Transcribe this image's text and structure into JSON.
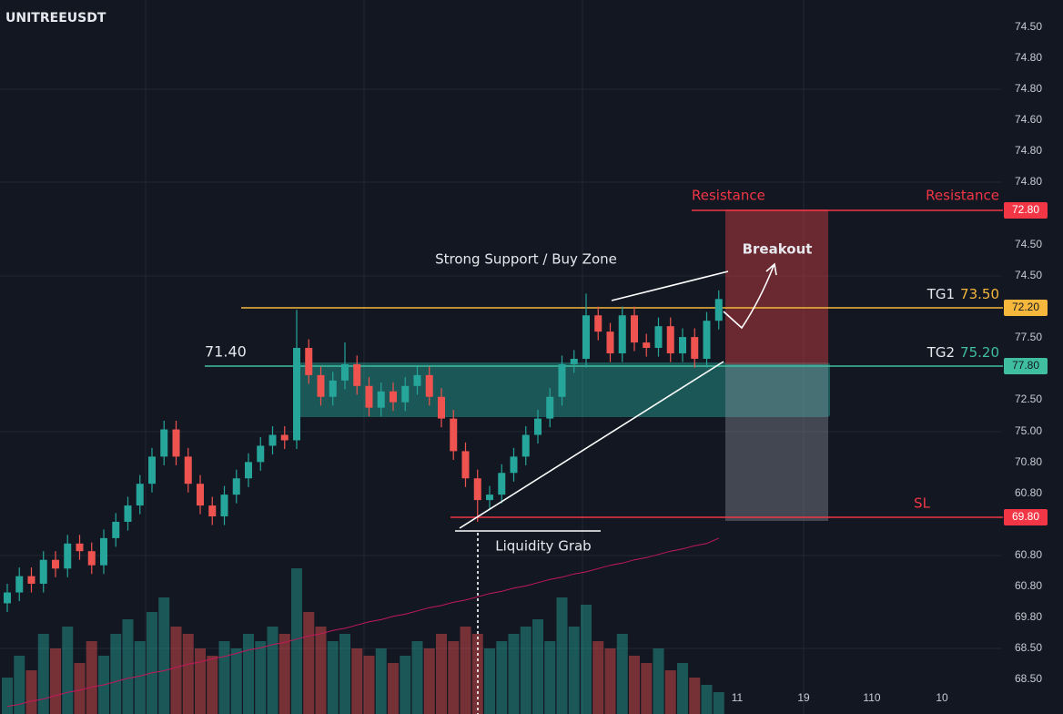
{
  "chart_data": {
    "type": "candlestick",
    "title": "UNITREEUSDT",
    "ylim": [
      68.5,
      74.5
    ],
    "up_color": "#26a69a",
    "down_color": "#ef5350",
    "price_axis_labels": [
      "74.50",
      "74.80",
      "74.80",
      "74.60",
      "74.80",
      "74.80",
      "74.50",
      "74.50",
      "77.50",
      "72.50",
      "75.00",
      "70.80",
      "60.80",
      "60.80",
      "60.80",
      "69.80",
      "68.50",
      "68.50"
    ],
    "time_axis_labels": [
      "11",
      "19",
      "110",
      "10"
    ],
    "series": {
      "open": [
        69.2,
        69.3,
        69.45,
        69.38,
        69.6,
        69.52,
        69.75,
        69.68,
        69.55,
        69.8,
        69.95,
        70.1,
        70.3,
        70.55,
        70.8,
        70.55,
        70.3,
        70.1,
        70.0,
        70.2,
        70.35,
        70.5,
        70.65,
        70.75,
        70.7,
        71.55,
        71.3,
        71.1,
        71.25,
        71.4,
        71.2,
        71.0,
        71.15,
        71.05,
        71.2,
        71.3,
        71.1,
        70.9,
        70.6,
        70.35,
        70.15,
        70.2,
        70.4,
        70.55,
        70.75,
        70.9,
        71.1,
        71.4,
        71.45,
        71.85,
        71.7,
        71.5,
        71.85,
        71.6,
        71.55,
        71.75,
        71.5,
        71.65,
        71.45,
        71.8
      ],
      "high": [
        69.38,
        69.53,
        69.53,
        69.68,
        69.68,
        69.83,
        69.83,
        69.76,
        69.88,
        70.03,
        70.18,
        70.38,
        70.63,
        70.88,
        70.88,
        70.63,
        70.38,
        70.18,
        70.28,
        70.43,
        70.58,
        70.73,
        70.83,
        70.83,
        71.9,
        71.63,
        71.38,
        71.33,
        71.6,
        71.48,
        71.28,
        71.23,
        71.23,
        71.28,
        71.38,
        71.38,
        71.18,
        70.98,
        70.68,
        70.43,
        70.28,
        70.48,
        70.63,
        70.83,
        70.98,
        71.18,
        71.48,
        71.53,
        72.05,
        71.93,
        71.78,
        71.93,
        71.93,
        71.68,
        71.83,
        71.83,
        71.73,
        71.73,
        71.88,
        72.08
      ],
      "low": [
        69.12,
        69.22,
        69.3,
        69.3,
        69.44,
        69.44,
        69.6,
        69.47,
        69.47,
        69.72,
        69.87,
        70.02,
        70.22,
        70.47,
        70.47,
        70.22,
        70.02,
        69.92,
        69.92,
        70.12,
        70.27,
        70.42,
        70.57,
        70.62,
        70.62,
        71.22,
        71.02,
        71.02,
        71.17,
        71.12,
        70.92,
        70.92,
        70.97,
        70.97,
        71.12,
        71.02,
        70.82,
        70.52,
        70.27,
        69.95,
        70.07,
        70.12,
        70.32,
        70.47,
        70.67,
        70.82,
        71.02,
        71.32,
        71.37,
        71.62,
        71.42,
        71.42,
        71.52,
        71.47,
        71.47,
        71.42,
        71.42,
        71.37,
        71.37,
        71.72
      ],
      "close": [
        69.3,
        69.45,
        69.38,
        69.6,
        69.52,
        69.75,
        69.68,
        69.55,
        69.8,
        69.95,
        70.1,
        70.3,
        70.55,
        70.8,
        70.55,
        70.3,
        70.1,
        70.0,
        70.2,
        70.35,
        70.5,
        70.65,
        70.75,
        70.7,
        71.55,
        71.3,
        71.1,
        71.25,
        71.4,
        71.2,
        71.0,
        71.15,
        71.05,
        71.2,
        71.3,
        71.1,
        70.9,
        70.6,
        70.35,
        70.15,
        70.2,
        70.4,
        70.55,
        70.75,
        70.9,
        71.1,
        71.4,
        71.45,
        71.85,
        71.7,
        71.5,
        71.85,
        71.6,
        71.55,
        71.75,
        71.5,
        71.65,
        71.45,
        71.8,
        72.0
      ]
    },
    "volume": {
      "ylim": [
        0,
        100
      ],
      "values": [
        25,
        40,
        30,
        55,
        45,
        60,
        35,
        50,
        40,
        55,
        65,
        50,
        70,
        80,
        60,
        55,
        45,
        40,
        50,
        45,
        55,
        50,
        60,
        55,
        100,
        70,
        60,
        50,
        55,
        45,
        40,
        45,
        35,
        40,
        50,
        45,
        55,
        50,
        60,
        55,
        45,
        50,
        55,
        60,
        65,
        50,
        80,
        60,
        75,
        50,
        45,
        55,
        40,
        35,
        45,
        30,
        35,
        25,
        20,
        15
      ]
    },
    "ma": {
      "color": "#c2185b",
      "values": [
        68.25,
        68.27,
        68.3,
        68.32,
        68.35,
        68.38,
        68.4,
        68.43,
        68.45,
        68.48,
        68.51,
        68.53,
        68.56,
        68.58,
        68.61,
        68.64,
        68.66,
        68.69,
        68.71,
        68.74,
        68.77,
        68.79,
        68.82,
        68.84,
        68.87,
        68.9,
        68.92,
        68.95,
        68.97,
        69.0,
        69.03,
        69.05,
        69.08,
        69.1,
        69.13,
        69.16,
        69.18,
        69.21,
        69.23,
        69.26,
        69.29,
        69.31,
        69.34,
        69.36,
        69.39,
        69.42,
        69.44,
        69.47,
        69.49,
        69.52,
        69.55,
        69.57,
        69.6,
        69.62,
        69.65,
        69.68,
        69.7,
        69.73,
        69.75,
        69.8
      ]
    },
    "levels": [
      {
        "name": "Resistance",
        "right_name": "Resistance",
        "tag": "72.80",
        "color": "#f23645"
      },
      {
        "name": "TG1",
        "right_value": "73.50",
        "tag": "72.20",
        "color": "#f5b83d"
      },
      {
        "name": "TG2",
        "right_value": "75.20",
        "left_value": "71.40",
        "tag": "77.80",
        "color": "#3fbfa0"
      },
      {
        "name": "SL",
        "tag": "69.80",
        "color": "#f23645"
      }
    ],
    "annotations": {
      "zone": "Strong Support / Buy Zone",
      "breakout": "Breakout",
      "liquidity": "Liquidity Grab"
    }
  }
}
